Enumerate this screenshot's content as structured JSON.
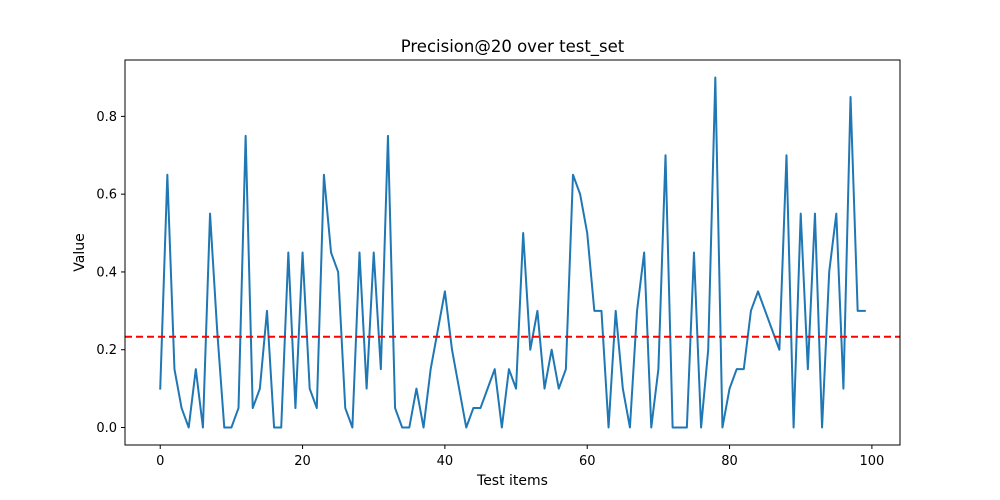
{
  "chart_data": {
    "type": "line",
    "title": "Precision@20 over test_set",
    "xlabel": "Test items",
    "ylabel": "Value",
    "xlim": [
      -4.95,
      103.95
    ],
    "ylim": [
      -0.045,
      0.945
    ],
    "xticks": [
      0,
      20,
      40,
      60,
      80,
      100
    ],
    "xtick_labels": [
      "0",
      "20",
      "40",
      "60",
      "80",
      "100"
    ],
    "yticks": [
      0.0,
      0.2,
      0.4,
      0.6,
      0.8
    ],
    "ytick_labels": [
      "0.0",
      "0.2",
      "0.4",
      "0.6",
      "0.8"
    ],
    "grid": false,
    "series": [
      {
        "color": "#1f77b4",
        "x": [
          0,
          1,
          2,
          3,
          4,
          5,
          6,
          7,
          8,
          9,
          10,
          11,
          12,
          13,
          14,
          15,
          16,
          17,
          18,
          19,
          20,
          21,
          22,
          23,
          24,
          25,
          26,
          27,
          28,
          29,
          30,
          31,
          32,
          33,
          34,
          35,
          36,
          37,
          38,
          39,
          40,
          41,
          42,
          43,
          44,
          45,
          46,
          47,
          48,
          49,
          50,
          51,
          52,
          53,
          54,
          55,
          56,
          57,
          58,
          59,
          60,
          61,
          62,
          63,
          64,
          65,
          66,
          67,
          68,
          69,
          70,
          71,
          72,
          73,
          74,
          75,
          76,
          77,
          78,
          79,
          80,
          81,
          82,
          83,
          84,
          85,
          86,
          87,
          88,
          89,
          90,
          91,
          92,
          93,
          94,
          95,
          96,
          97,
          98,
          99
        ],
        "values": [
          0.1,
          0.65,
          0.15,
          0.05,
          0.0,
          0.15,
          0.0,
          0.55,
          0.25,
          0.0,
          0.0,
          0.05,
          0.75,
          0.05,
          0.1,
          0.3,
          0.0,
          0.0,
          0.45,
          0.05,
          0.45,
          0.1,
          0.05,
          0.65,
          0.45,
          0.4,
          0.05,
          0.0,
          0.45,
          0.1,
          0.45,
          0.15,
          0.75,
          0.05,
          0.0,
          0.0,
          0.1,
          0.0,
          0.15,
          0.25,
          0.35,
          0.2,
          0.1,
          0.0,
          0.05,
          0.05,
          0.1,
          0.15,
          0.0,
          0.15,
          0.1,
          0.5,
          0.2,
          0.3,
          0.1,
          0.2,
          0.1,
          0.15,
          0.65,
          0.6,
          0.5,
          0.3,
          0.3,
          0.0,
          0.3,
          0.1,
          0.0,
          0.3,
          0.45,
          0.0,
          0.15,
          0.7,
          0.0,
          0.0,
          0.0,
          0.45,
          0.0,
          0.2,
          0.9,
          0.0,
          0.1,
          0.15,
          0.15,
          0.3,
          0.35,
          0.3,
          0.25,
          0.2,
          0.7,
          0.0,
          0.55,
          0.15,
          0.55,
          0.0,
          0.4,
          0.55,
          0.1,
          0.85,
          0.3,
          0.3
        ]
      }
    ],
    "reference_line": {
      "y": 0.2335,
      "color": "#ff0000",
      "style": "dashed"
    }
  }
}
